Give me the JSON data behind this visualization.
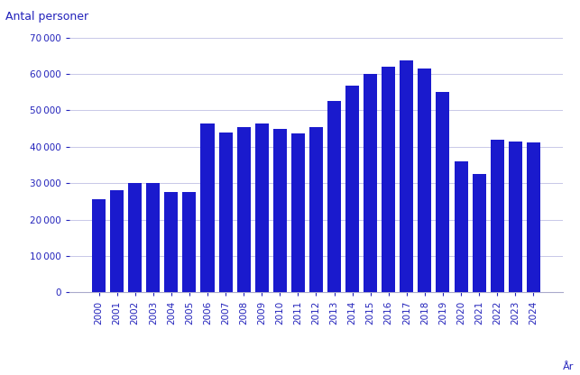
{
  "years": [
    "2000",
    "2001",
    "2002",
    "2003",
    "2004",
    "2005",
    "2006",
    "2007",
    "2008",
    "2009",
    "2010",
    "2011",
    "2012",
    "2013",
    "2014",
    "2015",
    "2016",
    "2017",
    "2018",
    "2019",
    "2020",
    "2021",
    "2022",
    "2023",
    "2024"
  ],
  "values": [
    25500,
    28000,
    30000,
    30000,
    27500,
    27700,
    46500,
    44000,
    45500,
    46500,
    44900,
    43700,
    45500,
    52500,
    56700,
    60000,
    62000,
    63700,
    61500,
    55000,
    36000,
    32500,
    42000,
    41500,
    41300
  ],
  "bar_color": "#1a1acd",
  "ylabel": "Antal personer",
  "xlabel": "År",
  "ylim": [
    0,
    70000
  ],
  "yticks": [
    0,
    10000,
    20000,
    30000,
    40000,
    50000,
    60000,
    70000
  ],
  "background_color": "#ffffff",
  "grid_color": "#c8c8e8",
  "label_color": "#2222bb",
  "tick_color": "#2222bb",
  "bar_width": 0.75
}
